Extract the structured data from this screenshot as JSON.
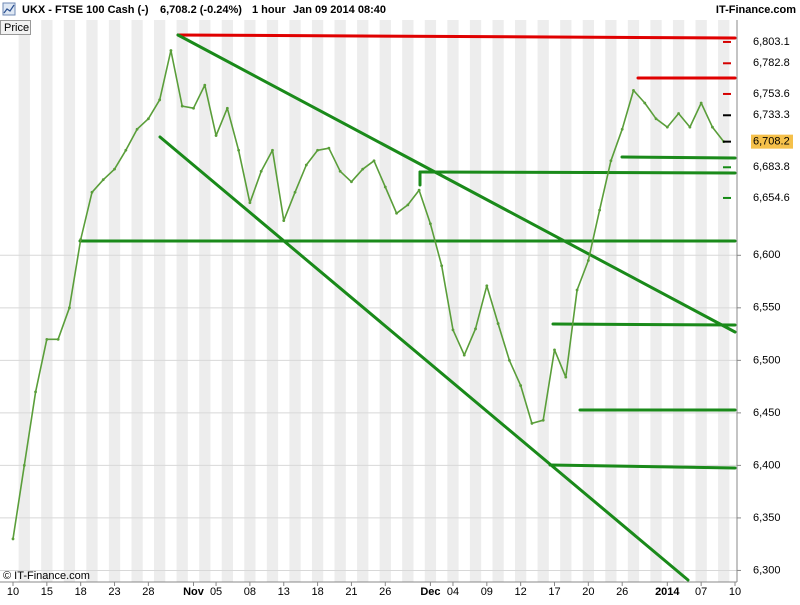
{
  "chart_data": {
    "type": "line",
    "title": "UKX - FTSE 100 Cash (-)",
    "subtitle": "6,708.2 (-0.24%)",
    "interval": "1 hour",
    "timestamp": "Jan 09 2014 08:40",
    "brand": "IT-Finance.com",
    "y_label": "Price",
    "copyright": "© IT-Finance.com",
    "color": "#5a9e3a",
    "grid": true,
    "categories": [
      "10",
      null,
      null,
      "15",
      null,
      null,
      "18",
      null,
      null,
      "23",
      null,
      null,
      "28",
      null,
      null,
      null,
      "Nov",
      null,
      "05",
      null,
      null,
      "08",
      null,
      null,
      "13",
      null,
      null,
      "18",
      null,
      null,
      "21",
      null,
      null,
      "26",
      null,
      null,
      null,
      "Dec",
      null,
      "04",
      null,
      null,
      "09",
      null,
      null,
      "12",
      null,
      null,
      "17",
      null,
      null,
      "20",
      null,
      null,
      "26",
      null,
      null,
      null,
      "2014",
      null,
      null,
      "07",
      null,
      null,
      "10"
    ],
    "values": [
      6330,
      6400,
      6470,
      6520,
      6520,
      6550,
      6615,
      6660,
      6672,
      6682,
      6700,
      6720,
      6730,
      6748,
      6795,
      6742,
      6740,
      6762,
      6714,
      6740,
      6700,
      6650,
      6680,
      6700,
      6633,
      6660,
      6686,
      6700,
      6702,
      6680,
      6670,
      6682,
      6690,
      6665,
      6640,
      6648,
      6662,
      6630,
      6590,
      6529,
      6505,
      6530,
      6571,
      6535,
      6500,
      6476,
      6440,
      6443,
      6510,
      6484,
      6567,
      6595,
      6643,
      6690,
      6720,
      6757,
      6745,
      6730,
      6722,
      6735,
      6722,
      6745,
      6722,
      6708.2,
      null
    ],
    "ylim": [
      6289,
      6824
    ],
    "yticks": [
      {
        "value": 6300,
        "label": "6,300"
      },
      {
        "value": 6350,
        "label": "6,350"
      },
      {
        "value": 6400,
        "label": "6,400"
      },
      {
        "value": 6450,
        "label": "6,450"
      },
      {
        "value": 6500,
        "label": "6,500"
      },
      {
        "value": 6550,
        "label": "6,550"
      },
      {
        "value": 6600,
        "label": "6,600"
      }
    ],
    "price_levels": [
      {
        "value": 6803.1,
        "label": "6,803.1",
        "color": "#d40000"
      },
      {
        "value": 6782.8,
        "label": "6,782.8",
        "color": "#d40000"
      },
      {
        "value": 6753.6,
        "label": "6,753.6",
        "color": "#d40000"
      },
      {
        "value": 6733.3,
        "label": "6,733.3",
        "color": "#000000"
      },
      {
        "value": 6708.2,
        "label": "6,708.2",
        "color": "#000000",
        "background": "#f5c04a"
      },
      {
        "value": 6683.8,
        "label": "6,683.8",
        "color": "#138a13"
      },
      {
        "value": 6654.6,
        "label": "6,654.6",
        "color": "#138a13"
      }
    ]
  }
}
